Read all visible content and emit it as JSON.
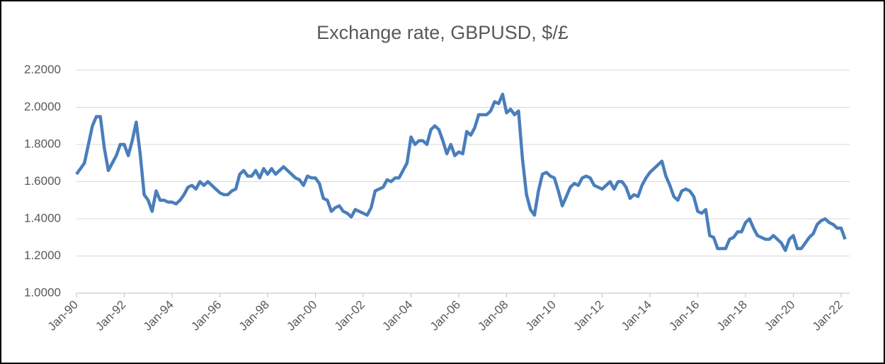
{
  "chart_data": {
    "type": "line",
    "title": "Exchange rate, GBPUSD, $/£",
    "categories": [
      "Jan-90",
      null,
      null,
      null,
      null,
      null,
      null,
      null,
      null,
      null,
      null,
      null,
      "Jan-92",
      null,
      null,
      null,
      null,
      null,
      null,
      null,
      null,
      null,
      null,
      null,
      "Jan-94",
      null,
      null,
      null,
      null,
      null,
      null,
      null,
      null,
      null,
      null,
      null,
      "Jan-96",
      null,
      null,
      null,
      null,
      null,
      null,
      null,
      null,
      null,
      null,
      null,
      "Jan-98",
      null,
      null,
      null,
      null,
      null,
      null,
      null,
      null,
      null,
      null,
      null,
      "Jan-00",
      null,
      null,
      null,
      null,
      null,
      null,
      null,
      null,
      null,
      null,
      null,
      "Jan-02",
      null,
      null,
      null,
      null,
      null,
      null,
      null,
      null,
      null,
      null,
      null,
      "Jan-04",
      null,
      null,
      null,
      null,
      null,
      null,
      null,
      null,
      null,
      null,
      null,
      "Jan-06",
      null,
      null,
      null,
      null,
      null,
      null,
      null,
      null,
      null,
      null,
      null,
      "Jan-08",
      null,
      null,
      null,
      null,
      null,
      null,
      null,
      null,
      null,
      null,
      null,
      "Jan-10",
      null,
      null,
      null,
      null,
      null,
      null,
      null,
      null,
      null,
      null,
      null,
      "Jan-12",
      null,
      null,
      null,
      null,
      null,
      null,
      null,
      null,
      null,
      null,
      null,
      "Jan-14",
      null,
      null,
      null,
      null,
      null,
      null,
      null,
      null,
      null,
      null,
      null,
      "Jan-16",
      null,
      null,
      null,
      null,
      null,
      null,
      null,
      null,
      null,
      null,
      null,
      "Jan-18",
      null,
      null,
      null,
      null,
      null,
      null,
      null,
      null,
      null,
      null,
      null,
      "Jan-20",
      null,
      null,
      null,
      null,
      null,
      null,
      null,
      null,
      null,
      null,
      null,
      "Jan-22",
      null
    ],
    "series": [
      {
        "name": "GBPUSD",
        "color": "#4a7ebb",
        "values": [
          1.64,
          1.67,
          1.7,
          1.8,
          1.9,
          1.95,
          1.95,
          1.78,
          1.66,
          1.7,
          1.74,
          1.8,
          1.8,
          1.74,
          1.82,
          1.92,
          1.75,
          1.53,
          1.5,
          1.44,
          1.55,
          1.5,
          1.5,
          1.49,
          1.49,
          1.48,
          1.5,
          1.53,
          1.57,
          1.58,
          1.56,
          1.6,
          1.58,
          1.6,
          1.58,
          1.56,
          1.54,
          1.53,
          1.53,
          1.55,
          1.56,
          1.64,
          1.66,
          1.63,
          1.63,
          1.66,
          1.62,
          1.67,
          1.64,
          1.67,
          1.64,
          1.66,
          1.68,
          1.66,
          1.64,
          1.62,
          1.61,
          1.58,
          1.63,
          1.62,
          1.62,
          1.59,
          1.51,
          1.5,
          1.44,
          1.46,
          1.47,
          1.44,
          1.43,
          1.41,
          1.45,
          1.44,
          1.43,
          1.42,
          1.46,
          1.55,
          1.56,
          1.57,
          1.61,
          1.6,
          1.62,
          1.62,
          1.66,
          1.7,
          1.84,
          1.8,
          1.82,
          1.82,
          1.8,
          1.88,
          1.9,
          1.88,
          1.82,
          1.75,
          1.8,
          1.74,
          1.76,
          1.75,
          1.87,
          1.85,
          1.89,
          1.96,
          1.96,
          1.96,
          1.98,
          2.03,
          2.02,
          2.07,
          1.97,
          1.99,
          1.96,
          1.98,
          1.72,
          1.53,
          1.45,
          1.42,
          1.55,
          1.64,
          1.65,
          1.63,
          1.62,
          1.55,
          1.47,
          1.52,
          1.57,
          1.59,
          1.58,
          1.62,
          1.63,
          1.62,
          1.58,
          1.57,
          1.56,
          1.58,
          1.6,
          1.56,
          1.6,
          1.6,
          1.57,
          1.51,
          1.53,
          1.52,
          1.58,
          1.62,
          1.65,
          1.67,
          1.69,
          1.71,
          1.63,
          1.58,
          1.52,
          1.5,
          1.55,
          1.56,
          1.55,
          1.52,
          1.44,
          1.43,
          1.45,
          1.31,
          1.3,
          1.24,
          1.24,
          1.24,
          1.29,
          1.3,
          1.33,
          1.33,
          1.38,
          1.4,
          1.35,
          1.31,
          1.3,
          1.29,
          1.29,
          1.31,
          1.29,
          1.27,
          1.23,
          1.29,
          1.31,
          1.24,
          1.24,
          1.27,
          1.3,
          1.32,
          1.37,
          1.39,
          1.4,
          1.38,
          1.37,
          1.35,
          1.35,
          1.29
        ]
      }
    ],
    "ylim": [
      1.0,
      2.2
    ],
    "yticks": [
      {
        "value": 1.0,
        "label": "1.0000"
      },
      {
        "value": 1.2,
        "label": "1.2000"
      },
      {
        "value": 1.4,
        "label": "1.4000"
      },
      {
        "value": 1.6,
        "label": "1.6000"
      },
      {
        "value": 1.8,
        "label": "1.8000"
      },
      {
        "value": 2.0,
        "label": "2.0000"
      },
      {
        "value": 2.2,
        "label": "2.2000"
      }
    ],
    "grid": true
  }
}
